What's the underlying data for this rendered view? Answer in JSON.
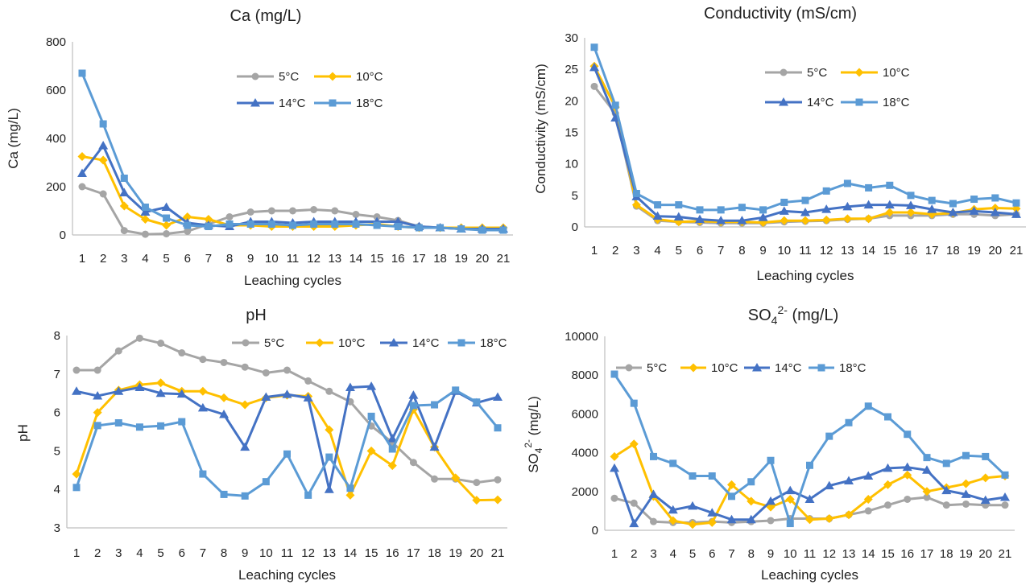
{
  "figure": {
    "series_names": [
      "5°C",
      "10°C",
      "14°C",
      "18°C"
    ],
    "colors": {
      "5°C": "#a5a5a5",
      "10°C": "#ffc000",
      "14°C": "#4472c4",
      "18°C": "#5b9bd5"
    }
  },
  "chart_data": [
    {
      "id": "ca",
      "type": "line",
      "title": "Ca (mg/L)",
      "xlabel": "Leaching cycles",
      "ylabel": "Ca (mg/L)",
      "ylim": [
        0,
        800
      ],
      "yticks": [
        0,
        200,
        400,
        600,
        800
      ],
      "categories": [
        "1",
        "2",
        "3",
        "4",
        "5",
        "6",
        "7",
        "8",
        "9",
        "10",
        "11",
        "12",
        "13",
        "14",
        "15",
        "16",
        "17",
        "18",
        "19",
        "20",
        "21"
      ],
      "legend": {
        "placement": "upper-right-inside",
        "columns": 2
      },
      "series": [
        {
          "name": "5°C",
          "values": [
            200,
            170,
            18,
            3,
            5,
            15,
            45,
            75,
            95,
            100,
            100,
            105,
            100,
            85,
            75,
            60,
            35,
            30,
            25,
            25,
            25
          ]
        },
        {
          "name": "10°C",
          "values": [
            325,
            310,
            120,
            65,
            40,
            75,
            65,
            40,
            40,
            35,
            35,
            35,
            35,
            40,
            45,
            35,
            30,
            30,
            30,
            30,
            30
          ]
        },
        {
          "name": "14°C",
          "values": [
            255,
            370,
            175,
            95,
            115,
            50,
            40,
            35,
            55,
            55,
            50,
            55,
            55,
            55,
            55,
            55,
            35,
            30,
            25,
            25,
            25
          ]
        },
        {
          "name": "18°C",
          "values": [
            670,
            460,
            235,
            115,
            70,
            40,
            35,
            45,
            45,
            45,
            40,
            45,
            45,
            45,
            40,
            35,
            30,
            30,
            25,
            20,
            20
          ]
        }
      ]
    },
    {
      "id": "conductivity",
      "type": "line",
      "title": "Conductivity (mS/cm)",
      "xlabel": "Leaching cycles",
      "ylabel": "Conductivity (mS/cm)",
      "ylim": [
        0,
        30
      ],
      "yticks": [
        0,
        5,
        10,
        15,
        20,
        25,
        30
      ],
      "categories": [
        "1",
        "2",
        "3",
        "4",
        "5",
        "6",
        "7",
        "8",
        "9",
        "10",
        "11",
        "12",
        "13",
        "14",
        "15",
        "16",
        "17",
        "18",
        "19",
        "20",
        "21"
      ],
      "legend": {
        "placement": "upper-right-inside",
        "columns": 2
      },
      "series": [
        {
          "name": "5°C",
          "values": [
            22.3,
            18.0,
            3.3,
            1.0,
            0.8,
            0.7,
            0.6,
            0.6,
            0.6,
            0.8,
            0.9,
            1.0,
            1.2,
            1.3,
            1.8,
            1.8,
            1.8,
            2.0,
            2.0,
            1.8,
            2.0
          ]
        },
        {
          "name": "10°C",
          "values": [
            25.5,
            19.0,
            3.5,
            1.2,
            0.8,
            0.9,
            0.8,
            0.8,
            0.7,
            1.0,
            1.0,
            1.1,
            1.3,
            1.3,
            2.3,
            2.3,
            2.0,
            2.2,
            2.8,
            3.0,
            2.9
          ]
        },
        {
          "name": "14°C",
          "values": [
            25.3,
            17.3,
            4.8,
            1.7,
            1.6,
            1.2,
            1.0,
            1.0,
            1.5,
            2.5,
            2.3,
            2.8,
            3.2,
            3.5,
            3.5,
            3.4,
            2.8,
            2.3,
            2.5,
            2.3,
            2.0
          ]
        },
        {
          "name": "18°C",
          "values": [
            28.5,
            19.3,
            5.3,
            3.5,
            3.5,
            2.7,
            2.7,
            3.1,
            2.7,
            3.9,
            4.2,
            5.7,
            6.9,
            6.2,
            6.6,
            5.0,
            4.2,
            3.7,
            4.4,
            4.6,
            3.8
          ]
        }
      ]
    },
    {
      "id": "ph",
      "type": "line",
      "title": "pH",
      "xlabel": "Leaching cycles",
      "ylabel": "pH",
      "ylim": [
        3,
        8
      ],
      "yticks": [
        3,
        4,
        5,
        6,
        7,
        8
      ],
      "categories": [
        "1",
        "2",
        "3",
        "4",
        "5",
        "6",
        "7",
        "8",
        "9",
        "10",
        "11",
        "12",
        "13",
        "14",
        "15",
        "16",
        "17",
        "18",
        "19",
        "20",
        "21"
      ],
      "legend": {
        "placement": "top-inside-single-row",
        "columns": 4
      },
      "series": [
        {
          "name": "5°C",
          "values": [
            7.1,
            7.1,
            7.6,
            7.93,
            7.8,
            7.55,
            7.38,
            7.3,
            7.18,
            7.03,
            7.1,
            6.82,
            6.55,
            6.28,
            5.65,
            5.22,
            4.7,
            4.27,
            4.27,
            4.18,
            4.25
          ]
        },
        {
          "name": "10°C",
          "values": [
            4.4,
            6.0,
            6.58,
            6.72,
            6.77,
            6.55,
            6.55,
            6.38,
            6.2,
            6.38,
            6.45,
            6.42,
            5.55,
            3.85,
            5.0,
            4.62,
            6.08,
            5.1,
            4.3,
            3.72,
            3.73
          ]
        },
        {
          "name": "14°C",
          "values": [
            6.55,
            6.43,
            6.55,
            6.65,
            6.5,
            6.48,
            6.12,
            5.95,
            5.1,
            6.4,
            6.47,
            6.38,
            4.0,
            6.65,
            6.68,
            5.32,
            6.45,
            5.1,
            6.55,
            6.25,
            6.4
          ]
        },
        {
          "name": "18°C",
          "values": [
            4.05,
            5.66,
            5.73,
            5.62,
            5.65,
            5.76,
            4.4,
            3.87,
            3.83,
            4.2,
            4.92,
            3.85,
            4.84,
            4.03,
            5.9,
            5.05,
            6.18,
            6.2,
            6.58,
            6.27,
            5.6
          ]
        }
      ]
    },
    {
      "id": "so4",
      "type": "line",
      "title": "SO",
      "title_sub": "4",
      "title_sup": "2-",
      "title_rest": " (mg/L)",
      "xlabel": "Leaching cycles",
      "ylabel": "SO",
      "ylabel_sub": "4",
      "ylabel_sup": "2-",
      "ylabel_rest": " (mg/L)",
      "ylim": [
        0,
        10000
      ],
      "yticks": [
        0,
        2000,
        4000,
        6000,
        8000,
        10000
      ],
      "categories": [
        "1",
        "2",
        "3",
        "4",
        "5",
        "6",
        "7",
        "8",
        "9",
        "10",
        "11",
        "12",
        "13",
        "14",
        "15",
        "16",
        "17",
        "18",
        "19",
        "20",
        "21"
      ],
      "legend": {
        "placement": "top-inside-single-row",
        "columns": 4
      },
      "series": [
        {
          "name": "5°C",
          "values": [
            1650,
            1400,
            450,
            400,
            400,
            450,
            400,
            450,
            500,
            600,
            600,
            600,
            800,
            1000,
            1300,
            1600,
            1700,
            1300,
            1350,
            1300,
            1300
          ]
        },
        {
          "name": "10°C",
          "values": [
            3800,
            4450,
            1750,
            500,
            300,
            400,
            2350,
            1500,
            1200,
            1600,
            550,
            600,
            800,
            1600,
            2350,
            2850,
            2000,
            2200,
            2400,
            2700,
            2800
          ]
        },
        {
          "name": "14°C",
          "values": [
            3200,
            350,
            1850,
            1050,
            1250,
            900,
            550,
            550,
            1500,
            2050,
            1600,
            2300,
            2550,
            2800,
            3200,
            3250,
            3100,
            2050,
            1850,
            1550,
            1700
          ]
        },
        {
          "name": "18°C",
          "values": [
            8050,
            6550,
            3800,
            3450,
            2800,
            2800,
            1750,
            2500,
            3600,
            350,
            3350,
            4850,
            5550,
            6400,
            5850,
            4950,
            3750,
            3450,
            3850,
            3800,
            2850
          ]
        }
      ]
    }
  ]
}
